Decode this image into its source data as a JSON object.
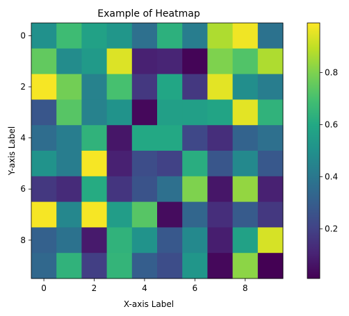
{
  "chart_data": {
    "type": "heatmap",
    "title": "Example of Heatmap",
    "xlabel": "X-axis Label",
    "ylabel": "Y-axis Label",
    "colormap": "viridis",
    "colorbar_range": [
      0.01,
      0.99
    ],
    "colorbar_ticks": [
      0.2,
      0.4,
      0.6,
      0.8
    ],
    "x_ticks": [
      0,
      2,
      4,
      6,
      8
    ],
    "y_ticks": [
      0,
      2,
      4,
      6,
      8
    ],
    "rows": 10,
    "cols": 10,
    "values": [
      [
        0.5,
        0.68,
        0.57,
        0.52,
        0.37,
        0.63,
        0.42,
        0.87,
        0.97,
        0.38
      ],
      [
        0.75,
        0.48,
        0.54,
        0.94,
        0.1,
        0.11,
        0.02,
        0.8,
        0.72,
        0.87
      ],
      [
        0.98,
        0.78,
        0.44,
        0.7,
        0.17,
        0.59,
        0.17,
        0.95,
        0.49,
        0.42
      ],
      [
        0.27,
        0.73,
        0.44,
        0.51,
        0.03,
        0.56,
        0.56,
        0.58,
        0.95,
        0.64
      ],
      [
        0.36,
        0.42,
        0.64,
        0.07,
        0.6,
        0.6,
        0.22,
        0.14,
        0.32,
        0.37
      ],
      [
        0.51,
        0.42,
        0.98,
        0.1,
        0.24,
        0.2,
        0.62,
        0.27,
        0.47,
        0.28
      ],
      [
        0.17,
        0.13,
        0.61,
        0.16,
        0.26,
        0.37,
        0.8,
        0.07,
        0.83,
        0.1
      ],
      [
        0.98,
        0.46,
        0.98,
        0.55,
        0.73,
        0.04,
        0.33,
        0.14,
        0.29,
        0.17
      ],
      [
        0.31,
        0.38,
        0.08,
        0.64,
        0.51,
        0.28,
        0.47,
        0.09,
        0.57,
        0.93
      ],
      [
        0.34,
        0.64,
        0.19,
        0.65,
        0.3,
        0.24,
        0.52,
        0.03,
        0.82,
        0.01
      ]
    ]
  }
}
